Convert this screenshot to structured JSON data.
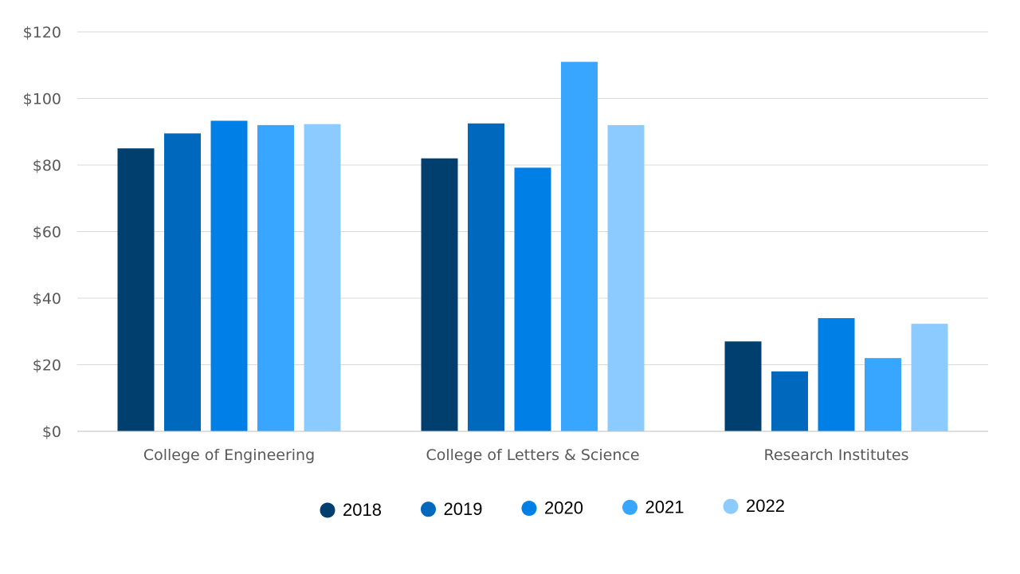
{
  "chart_data": {
    "type": "bar",
    "categories": [
      "College of Engineering",
      "College of Letters & Science",
      "Research Institutes"
    ],
    "series": [
      {
        "name": "2018",
        "color": "#003f6e",
        "values": [
          85,
          82,
          27
        ]
      },
      {
        "name": "2019",
        "color": "#0068bd",
        "values": [
          89.5,
          92.5,
          18
        ]
      },
      {
        "name": "2020",
        "color": "#0080e6",
        "values": [
          93.3,
          79.2,
          34
        ]
      },
      {
        "name": "2021",
        "color": "#38a6ff",
        "values": [
          92,
          111,
          22
        ]
      },
      {
        "name": "2022",
        "color": "#8ccbff",
        "values": [
          92.3,
          92,
          32.3
        ]
      }
    ],
    "ylim": [
      0,
      120
    ],
    "yticks": [
      0,
      20,
      40,
      60,
      80,
      100,
      120
    ],
    "ytick_labels": [
      "$0",
      "$20",
      "$40",
      "$60",
      "$80",
      "$100",
      "$120"
    ],
    "grid": true,
    "legend_position": "bottom"
  }
}
